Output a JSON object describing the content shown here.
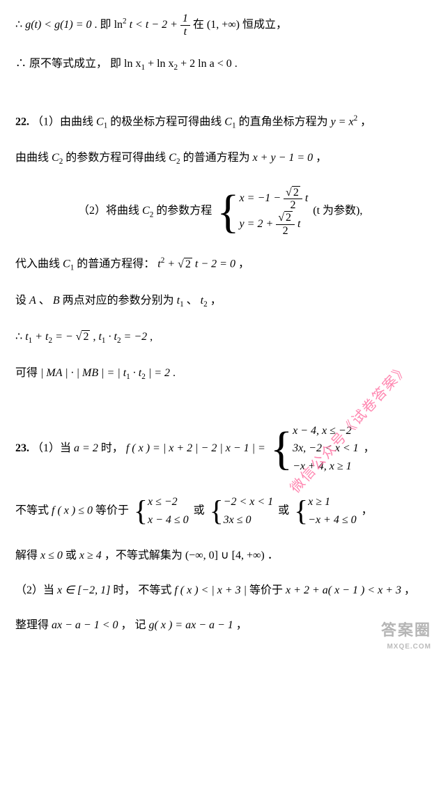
{
  "colors": {
    "text": "#000000",
    "background": "#ffffff",
    "watermark_pink": "#ff7aa8",
    "watermark_gray": "rgba(120,120,120,0.55)"
  },
  "typography": {
    "body_font": "SimSun / Songti",
    "math_font": "Times New Roman italic",
    "body_size_pt": 12,
    "bold_labels": [
      "22.",
      "23."
    ]
  },
  "watermarks": {
    "diagonal": "微信公众号《试卷答案》",
    "corner_main": "答案圈",
    "corner_sub": "MXQE.COM"
  },
  "lines": {
    "l1a": "∴ ",
    "l1b": "g(t) < g(1) = 0",
    "l1c": " .  即 ",
    "l1d": "ln",
    "l1e": "t < t − 2 + ",
    "l1f_num": "1",
    "l1f_den": "t",
    "l1g": " 在 (1, +∞) 恒成立，",
    "l2a": "∴ 原不等式成立， 即 ",
    "l2b": "ln x",
    "l2c": " + ln x",
    "l2d": " + 2 ln a < 0",
    "l2e": " .",
    "q22": "22.",
    "l3a": "（1）由曲线 ",
    "l3b": "C",
    "l3c": " 的极坐标方程可得曲线 ",
    "l3d": " 的直角坐标方程为 ",
    "l3e": "y = x",
    "l3f": "，",
    "l4a": "由曲线 ",
    "l4b": " 的参数方程可得曲线 ",
    "l4c": " 的普通方程为 ",
    "l4d": "x + y − 1 = 0",
    "l4e": "，",
    "l5a": "（2）将曲线 ",
    "l5b": " 的参数方程 ",
    "l5_x": "x = −1 − ",
    "l5_y": "y = 2 + ",
    "l5_frac_num": "√2",
    "l5_frac_den": "2",
    "l5_t": " t",
    "l5c": "   (t 为参数),",
    "l6a": "代入曲线 ",
    "l6b": " 的普通方程得：  ",
    "l6c": "t",
    "l6d": " + ",
    "l6e": "t − 2 = 0",
    "l6f": "，",
    "l7a": "设 ",
    "l7b": "A",
    "l7c": "、 ",
    "l7d": "B",
    "l7e": " 两点对应的参数分别为 ",
    "l7f": "t",
    "l7g": "、 ",
    "l7h": "，",
    "l8a": "∴ ",
    "l8b": "t",
    "l8c": " + t",
    "l8d": " = −",
    "l8e": " ,    ",
    "l8f": " · t",
    "l8g": " = −2",
    "l8h": " ,",
    "l9a": "可得 ",
    "l9b": "| MA | · | MB | = | t",
    "l9c": " · t",
    "l9d": " | = 2",
    "l9e": " .",
    "q23": "23.",
    "l10a": "（1）当 ",
    "l10b": "a = 2",
    "l10c": " 时，  ",
    "l10d": "f ( x ) = | x + 2 | − 2 | x − 1 | = ",
    "l10_r1": "x − 4, x ≤ −2",
    "l10_r2": "3x, −2 < x < 1",
    "l10_r3": "−x + 4, x ≥ 1",
    "l10e": "，",
    "l11a": "不等式 ",
    "l11b": "f ( x ) ≤ 0",
    "l11c": " 等价于 ",
    "l11_b1r1": "x ≤ −2",
    "l11_b1r2": "x − 4 ≤ 0",
    "l11_or": " 或 ",
    "l11_b2r1": "−2 < x < 1",
    "l11_b2r2": "3x ≤ 0",
    "l11_b3r1": "x ≥ 1",
    "l11_b3r2": "−x + 4 ≤ 0",
    "l11d": "，",
    "l12a": "解得 ",
    "l12b": "x ≤ 0",
    "l12c": " 或 ",
    "l12d": "x ≥ 4",
    "l12e": "，不等式解集为 ",
    "l12f": "(−∞, 0] ∪ [4, +∞)",
    "l12g": "．",
    "l13a": "（2）当 ",
    "l13b": "x ∈ [−2, 1]",
    "l13c": " 时， 不等式 ",
    "l13d": "f ( x ) < | x + 3 |",
    "l13e": " 等价于 ",
    "l13f": "x + 2 + a( x − 1 ) < x + 3",
    "l13g": "，",
    "l14a": "整理得 ",
    "l14b": "ax − a − 1 < 0",
    "l14c": "， 记 ",
    "l14d": "g( x ) = ax − a − 1",
    "l14e": "，"
  }
}
